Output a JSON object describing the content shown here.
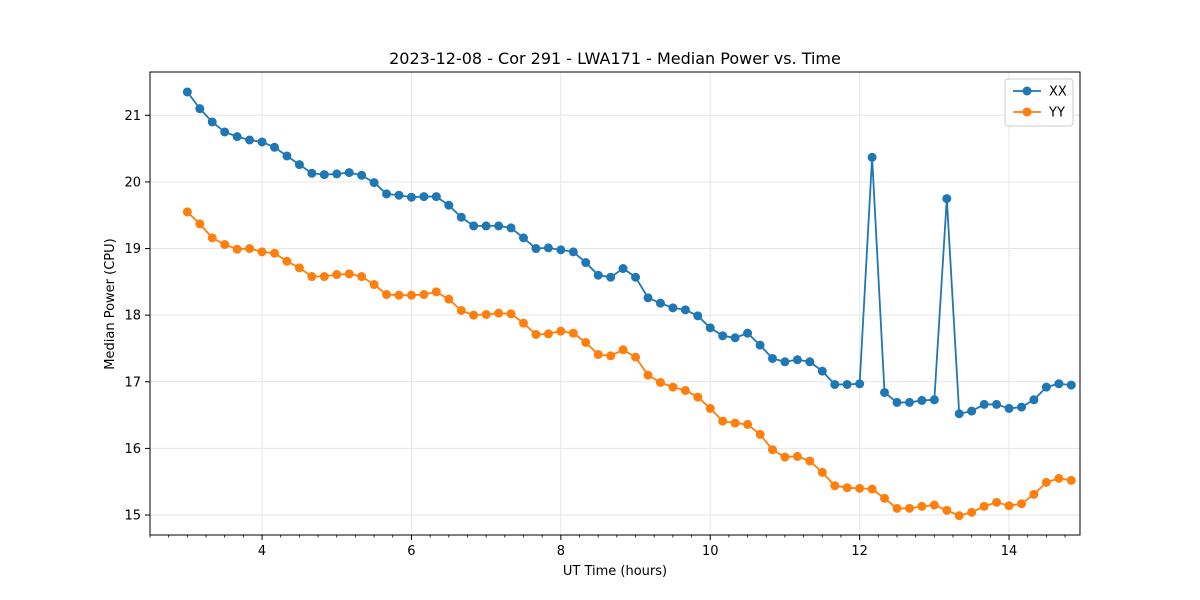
{
  "chart_data": {
    "type": "line",
    "title": "2023-12-08 - Cor 291 - LWA171 - Median Power vs. Time",
    "xlabel": "UT Time (hours)",
    "ylabel": "Median Power (CPU)",
    "xlim": [
      2.5,
      14.95
    ],
    "ylim": [
      14.7,
      21.65
    ],
    "xticks": [
      4,
      6,
      8,
      10,
      12,
      14
    ],
    "yticks": [
      15,
      16,
      17,
      18,
      19,
      20,
      21
    ],
    "grid": true,
    "legend_position": "top-right",
    "x": [
      3.0,
      3.167,
      3.333,
      3.5,
      3.667,
      3.833,
      4.0,
      4.167,
      4.333,
      4.5,
      4.667,
      4.833,
      5.0,
      5.167,
      5.333,
      5.5,
      5.667,
      5.833,
      6.0,
      6.167,
      6.333,
      6.5,
      6.667,
      6.833,
      7.0,
      7.167,
      7.333,
      7.5,
      7.667,
      7.833,
      8.0,
      8.167,
      8.333,
      8.5,
      8.667,
      8.833,
      9.0,
      9.167,
      9.333,
      9.5,
      9.667,
      9.833,
      10.0,
      10.167,
      10.333,
      10.5,
      10.667,
      10.833,
      11.0,
      11.167,
      11.333,
      11.5,
      11.667,
      11.833,
      12.0,
      12.167,
      12.333,
      12.5,
      12.667,
      12.833,
      13.0,
      13.167,
      13.333,
      13.5,
      13.667,
      13.833,
      14.0,
      14.167,
      14.333,
      14.5,
      14.667,
      14.833
    ],
    "series": [
      {
        "name": "XX",
        "color": "#1f77b4",
        "values": [
          21.35,
          21.1,
          20.9,
          20.75,
          20.68,
          20.63,
          20.6,
          20.52,
          20.39,
          20.26,
          20.13,
          20.11,
          20.12,
          20.14,
          20.1,
          19.99,
          19.82,
          19.8,
          19.77,
          19.78,
          19.78,
          19.65,
          19.47,
          19.34,
          19.34,
          19.34,
          19.31,
          19.16,
          19.0,
          19.01,
          18.98,
          18.95,
          18.79,
          18.6,
          18.57,
          18.7,
          18.57,
          18.26,
          18.18,
          18.11,
          18.08,
          17.99,
          17.81,
          17.69,
          17.66,
          17.73,
          17.55,
          17.35,
          17.3,
          17.33,
          17.3,
          17.16,
          16.96,
          16.96,
          16.97,
          20.37,
          16.84,
          16.69,
          16.69,
          16.72,
          16.73,
          19.75,
          16.52,
          16.56,
          16.66,
          16.66,
          16.6,
          16.62,
          16.73,
          16.92,
          16.97,
          16.95
        ]
      },
      {
        "name": "YY",
        "color": "#ff7f0e",
        "values": [
          19.55,
          19.37,
          19.16,
          19.06,
          18.99,
          19.0,
          18.95,
          18.93,
          18.81,
          18.71,
          18.58,
          18.58,
          18.61,
          18.62,
          18.58,
          18.46,
          18.31,
          18.3,
          18.3,
          18.31,
          18.35,
          18.24,
          18.07,
          18.0,
          18.01,
          18.03,
          18.02,
          17.88,
          17.71,
          17.72,
          17.76,
          17.73,
          17.59,
          17.41,
          17.39,
          17.48,
          17.37,
          17.1,
          16.99,
          16.92,
          16.87,
          16.77,
          16.6,
          16.41,
          16.38,
          16.36,
          16.21,
          15.98,
          15.87,
          15.88,
          15.81,
          15.64,
          15.44,
          15.41,
          15.4,
          15.39,
          15.25,
          15.1,
          15.1,
          15.13,
          15.15,
          15.07,
          14.99,
          15.04,
          15.13,
          15.19,
          15.14,
          15.17,
          15.31,
          15.49,
          15.55,
          15.52
        ]
      }
    ]
  }
}
